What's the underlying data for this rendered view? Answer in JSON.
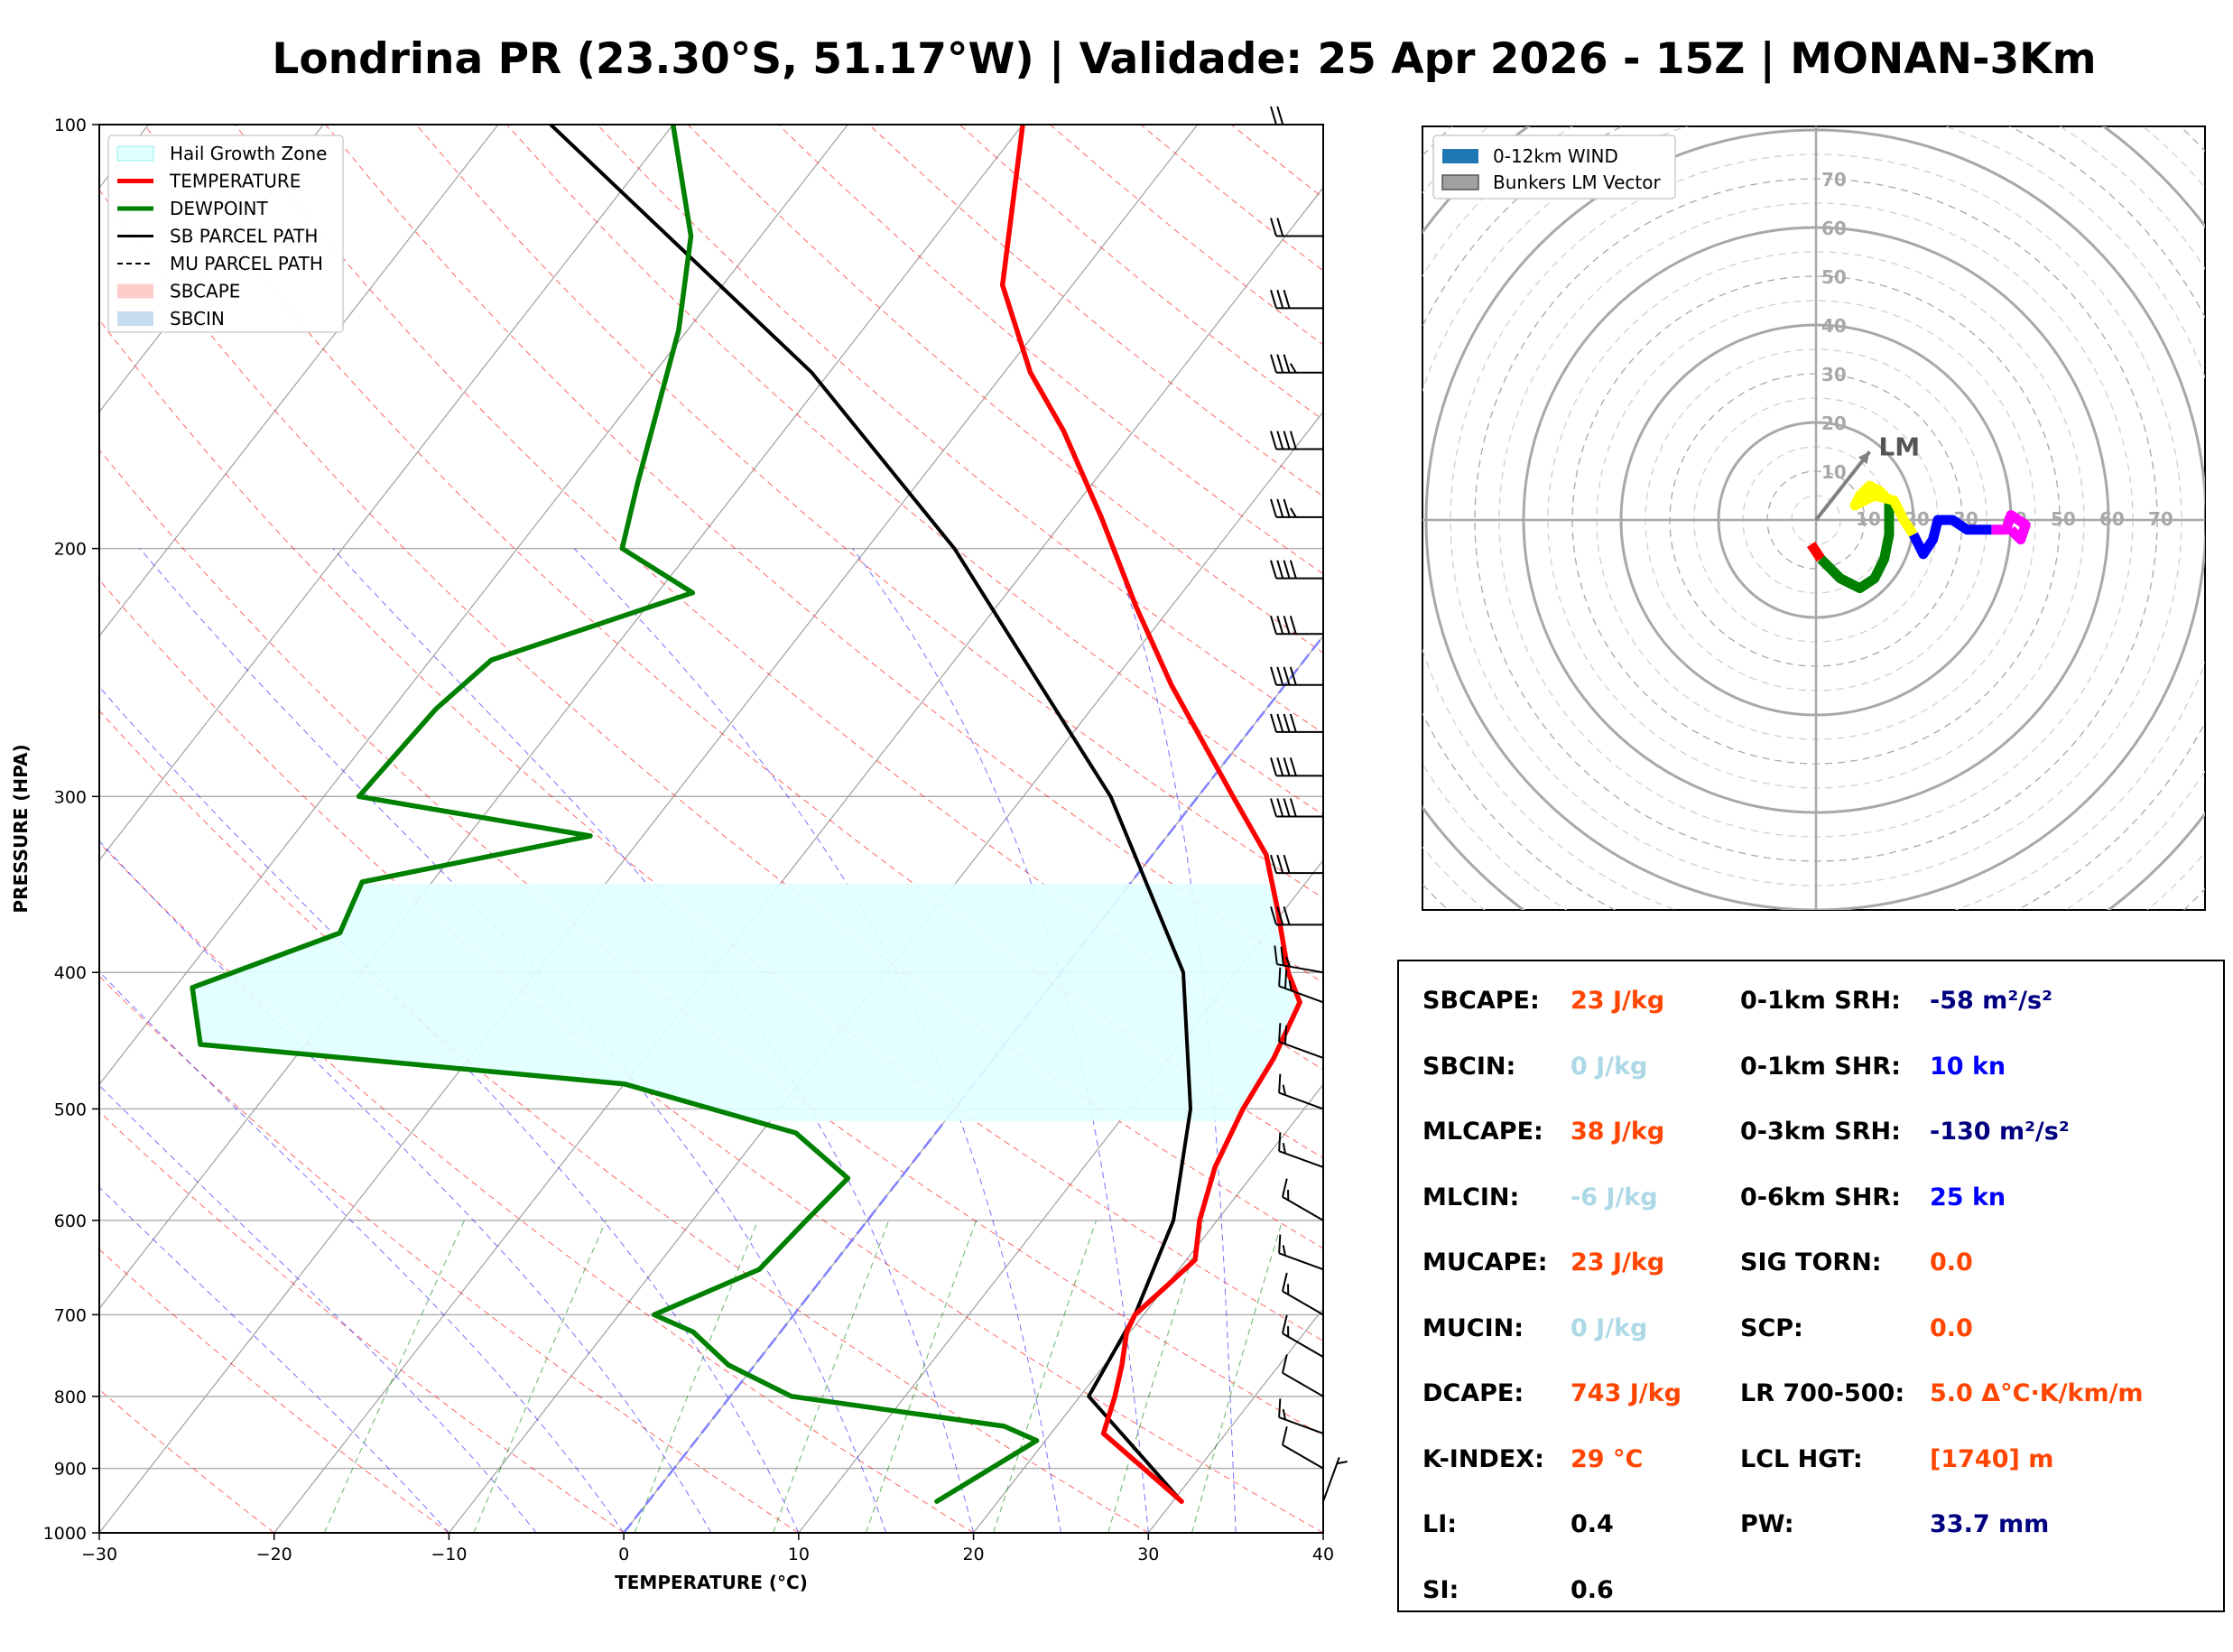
{
  "title": "Londrina PR (23.30°S, 51.17°W) | Validade: 25 Apr 2026 - 15Z | MONAN-3Km",
  "colors": {
    "temperature": "#ff0000",
    "dewpoint": "#008000",
    "sb_parcel": "#000000",
    "hail_zone": "#e0ffff",
    "dry_adiabat": "#ff0000",
    "moist_adiabat": "#0000ff",
    "mixing_ratio": "#008000",
    "isotherm_0": "#8080ff",
    "hodo_seg_0_1": "#ff0000",
    "hodo_seg_1_3": "#008000",
    "hodo_seg_3_6": "#ffff00",
    "hodo_seg_6_9": "#0000ff",
    "hodo_seg_9_12": "#ff00ff",
    "label_orange": "#ff4500",
    "label_lightblue": "#add8e6",
    "label_navy": "#000080",
    "label_blue": "#0000ff",
    "label_black": "#000000"
  },
  "chart_data": [
    {
      "type": "line",
      "subtype": "skew-T log-P",
      "xlabel": "TEMPERATURE (°C)",
      "ylabel": "PRESSURE (HPA)",
      "xlim": [
        -30,
        40
      ],
      "ylim": [
        1000,
        100
      ],
      "y_scale": "log",
      "x_ticks": [
        "−30",
        "−20",
        "−10",
        "0",
        "10",
        "20",
        "30",
        "40"
      ],
      "y_ticks": [
        "1000",
        "900",
        "800",
        "700",
        "600",
        "500",
        "400",
        "300",
        "200",
        "100"
      ],
      "grid": true,
      "legend_position": "top-left",
      "legend": [
        "Hail Growth Zone",
        "TEMPERATURE",
        "DEWPOINT",
        "SB PARCEL PATH",
        "MU PARCEL PATH",
        "SBCAPE",
        "SBCIN"
      ],
      "series": [
        {
          "name": "TEMPERATURE",
          "points": [
            [
              950,
              30.5
            ],
            [
              850,
              23
            ],
            [
              800,
              22
            ],
            [
              760,
              21
            ],
            [
              720,
              19.8
            ],
            [
              700,
              19.5
            ],
            [
              670,
              20
            ],
            [
              640,
              20.5
            ],
            [
              600,
              19
            ],
            [
              550,
              17.5
            ],
            [
              500,
              16.5
            ],
            [
              460,
              16
            ],
            [
              420,
              15
            ],
            [
              400,
              13
            ],
            [
              360,
              9.5
            ],
            [
              330,
              6.5
            ],
            [
              300,
              2
            ],
            [
              250,
              -6.5
            ],
            [
              220,
              -12
            ],
            [
              190,
              -18
            ],
            [
              165,
              -24
            ],
            [
              150,
              -28.5
            ],
            [
              130,
              -34
            ],
            [
              100,
              -40
            ]
          ]
        },
        {
          "name": "DEWPOINT",
          "points": [
            [
              950,
              16.5
            ],
            [
              860,
              19.5
            ],
            [
              840,
              17
            ],
            [
              800,
              3.5
            ],
            [
              760,
              -1.5
            ],
            [
              720,
              -5
            ],
            [
              700,
              -8
            ],
            [
              650,
              -4
            ],
            [
              600,
              -3.5
            ],
            [
              560,
              -3
            ],
            [
              520,
              -8
            ],
            [
              480,
              -20
            ],
            [
              450,
              -46
            ],
            [
              410,
              -49
            ],
            [
              375,
              -43
            ],
            [
              345,
              -44
            ],
            [
              320,
              -33
            ],
            [
              300,
              -48
            ],
            [
              260,
              -47.5
            ],
            [
              240,
              -46.5
            ],
            [
              215,
              -38
            ],
            [
              200,
              -44
            ],
            [
              180,
              -46
            ],
            [
              140,
              -50.5
            ],
            [
              120,
              -54
            ],
            [
              100,
              -60
            ]
          ]
        },
        {
          "name": "SB PARCEL PATH",
          "points": [
            [
              950,
              30.5
            ],
            [
              800,
              20.5
            ],
            [
              700,
              19.5
            ],
            [
              600,
              17.5
            ],
            [
              500,
              13.5
            ],
            [
              400,
              7
            ],
            [
              300,
              -5
            ],
            [
              250,
              -14
            ],
            [
              200,
              -25
            ],
            [
              150,
              -41
            ],
            [
              100,
              -67
            ]
          ]
        }
      ],
      "hail_growth_zone": {
        "top_hpa": 345,
        "bottom_hpa": 510,
        "temperature_range_c": [
          -30,
          -10
        ]
      },
      "wind_barbs": [
        {
          "p": 950,
          "speed_kt": 5,
          "dir_deg": 20
        },
        {
          "p": 900,
          "speed_kt": 10,
          "dir_deg": 300
        },
        {
          "p": 850,
          "speed_kt": 15,
          "dir_deg": 290
        },
        {
          "p": 800,
          "speed_kt": 10,
          "dir_deg": 300
        },
        {
          "p": 750,
          "speed_kt": 15,
          "dir_deg": 300
        },
        {
          "p": 700,
          "speed_kt": 15,
          "dir_deg": 300
        },
        {
          "p": 650,
          "speed_kt": 15,
          "dir_deg": 290
        },
        {
          "p": 600,
          "speed_kt": 15,
          "dir_deg": 300
        },
        {
          "p": 550,
          "speed_kt": 15,
          "dir_deg": 290
        },
        {
          "p": 500,
          "speed_kt": 15,
          "dir_deg": 290
        },
        {
          "p": 460,
          "speed_kt": 20,
          "dir_deg": 290
        },
        {
          "p": 420,
          "speed_kt": 25,
          "dir_deg": 290
        },
        {
          "p": 400,
          "speed_kt": 25,
          "dir_deg": 280
        },
        {
          "p": 370,
          "speed_kt": 30,
          "dir_deg": 270
        },
        {
          "p": 340,
          "speed_kt": 30,
          "dir_deg": 270
        },
        {
          "p": 310,
          "speed_kt": 40,
          "dir_deg": 270
        },
        {
          "p": 290,
          "speed_kt": 40,
          "dir_deg": 270
        },
        {
          "p": 270,
          "speed_kt": 40,
          "dir_deg": 270
        },
        {
          "p": 250,
          "speed_kt": 40,
          "dir_deg": 270
        },
        {
          "p": 230,
          "speed_kt": 40,
          "dir_deg": 270
        },
        {
          "p": 210,
          "speed_kt": 40,
          "dir_deg": 270
        },
        {
          "p": 190,
          "speed_kt": 35,
          "dir_deg": 270
        },
        {
          "p": 170,
          "speed_kt": 40,
          "dir_deg": 270
        },
        {
          "p": 150,
          "speed_kt": 35,
          "dir_deg": 270
        },
        {
          "p": 135,
          "speed_kt": 30,
          "dir_deg": 270
        },
        {
          "p": 120,
          "speed_kt": 20,
          "dir_deg": 270
        },
        {
          "p": 100,
          "speed_kt": 20,
          "dir_deg": 270
        }
      ]
    },
    {
      "type": "line",
      "subtype": "hodograph",
      "ring_labels": [
        "10",
        "20",
        "30",
        "40",
        "50",
        "60",
        "70"
      ],
      "max_speed_kt": 80,
      "legend_position": "top-left",
      "legend": [
        "0-12km WIND",
        "Bunkers LM Vector"
      ],
      "storm_motion_label": "LM",
      "bunkers_lm_vector": {
        "u": 11,
        "v": 14
      },
      "segments": [
        {
          "layer": "0-1km",
          "color_key": "hodo_seg_0_1",
          "points": [
            [
              -1,
              -5
            ],
            [
              1,
              -8
            ]
          ]
        },
        {
          "layer": "1-3km",
          "color_key": "hodo_seg_1_3",
          "points": [
            [
              1,
              -8
            ],
            [
              5,
              -12
            ],
            [
              9,
              -14
            ],
            [
              12,
              -12
            ],
            [
              14,
              -8
            ],
            [
              15,
              -3
            ],
            [
              15,
              1
            ],
            [
              15,
              4
            ]
          ]
        },
        {
          "layer": "3-6km",
          "color_key": "hodo_seg_3_6",
          "points": [
            [
              15,
              4
            ],
            [
              13,
              6
            ],
            [
              11,
              7
            ],
            [
              9,
              5
            ],
            [
              8,
              3
            ],
            [
              12,
              5
            ],
            [
              16,
              4
            ],
            [
              18,
              0
            ],
            [
              20,
              -3
            ]
          ]
        },
        {
          "layer": "6-9km",
          "color_key": "hodo_seg_6_9",
          "points": [
            [
              20,
              -3
            ],
            [
              22,
              -7
            ],
            [
              24,
              -4
            ],
            [
              25,
              0
            ],
            [
              28,
              0
            ],
            [
              31,
              -2
            ],
            [
              36,
              -2
            ]
          ]
        },
        {
          "layer": "9-12km",
          "color_key": "hodo_seg_9_12",
          "points": [
            [
              36,
              -2
            ],
            [
              39,
              -2
            ],
            [
              40,
              1
            ],
            [
              43,
              -1
            ],
            [
              42,
              -4
            ],
            [
              40,
              -2
            ]
          ]
        }
      ]
    }
  ],
  "stats": [
    {
      "label": "SBCAPE:",
      "value": "23 J/kg",
      "color_key": "label_orange"
    },
    {
      "label": "SBCIN:",
      "value": "0 J/kg",
      "color_key": "label_lightblue"
    },
    {
      "label": "MLCAPE:",
      "value": "38 J/kg",
      "color_key": "label_orange"
    },
    {
      "label": "MLCIN:",
      "value": "-6 J/kg",
      "color_key": "label_lightblue"
    },
    {
      "label": "MUCAPE:",
      "value": "23 J/kg",
      "color_key": "label_orange"
    },
    {
      "label": "MUCIN:",
      "value": "0 J/kg",
      "color_key": "label_lightblue"
    },
    {
      "label": "DCAPE:",
      "value": "743 J/kg",
      "color_key": "label_orange"
    },
    {
      "label": "K-INDEX:",
      "value": "29 °C",
      "color_key": "label_orange"
    },
    {
      "label": "LI:",
      "value": "0.4",
      "color_key": "label_black"
    },
    {
      "label": "SI:",
      "value": "0.6",
      "color_key": "label_black"
    },
    {
      "label": "0-1km SRH:",
      "value": "-58 m²/s²",
      "color_key": "label_navy"
    },
    {
      "label": "0-1km SHR:",
      "value": "10 kn",
      "color_key": "label_blue"
    },
    {
      "label": "0-3km SRH:",
      "value": "-130 m²/s²",
      "color_key": "label_navy"
    },
    {
      "label": "0-6km SHR:",
      "value": "25 kn",
      "color_key": "label_blue"
    },
    {
      "label": "SIG TORN:",
      "value": "0.0",
      "color_key": "label_orange"
    },
    {
      "label": "SCP:",
      "value": "0.0",
      "color_key": "label_orange"
    },
    {
      "label": "LR 700-500:",
      "value": "5.0 Δ°C·K/km/m",
      "color_key": "label_orange"
    },
    {
      "label": "LCL HGT:",
      "value": "[1740] m",
      "color_key": "label_orange"
    },
    {
      "label": "PW:",
      "value": "33.7 mm",
      "color_key": "label_navy"
    }
  ]
}
